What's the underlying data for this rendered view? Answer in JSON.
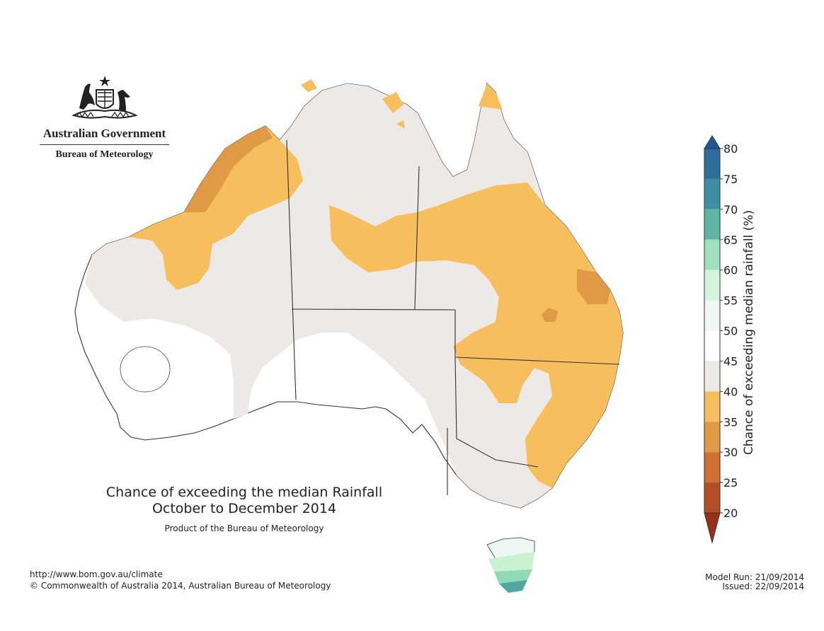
{
  "header": {
    "org_name": "Australian Government",
    "org_sub": "Bureau of Meteorology"
  },
  "map": {
    "title_line1": "Chance of exceeding the median Rainfall",
    "title_line2": "October to December 2014",
    "subtitle": "Product of the Bureau of Meteorology",
    "region": "Australia",
    "colors": {
      "20-25": "#a83a1a",
      "25-30": "#c85a26",
      "30-35": "#d98a3a",
      "35-40": "#f6be5c",
      "40-45": "#ece9e6",
      "45-55": "#ffffff",
      "55-60": "#e6f4ec",
      "60-65": "#c9f2d1",
      "65-70": "#8fd8b8",
      "70-75": "#4fa6a2",
      "75-80": "#2e7a99",
      "80+": "#1b5893"
    }
  },
  "legend": {
    "title": "Chance of exceeding median rainfall (%)",
    "ticks": [
      "80",
      "75",
      "70",
      "65",
      "60",
      "55",
      "50",
      "45",
      "40",
      "35",
      "30",
      "25",
      "20"
    ],
    "bands": [
      {
        "from": 75,
        "to": 80,
        "color": "#2e6e9a"
      },
      {
        "from": 70,
        "to": 75,
        "color": "#3f8fa3"
      },
      {
        "from": 65,
        "to": 70,
        "color": "#5fb5a6"
      },
      {
        "from": 60,
        "to": 65,
        "color": "#9ee0bf"
      },
      {
        "from": 55,
        "to": 60,
        "color": "#d3f3da"
      },
      {
        "from": 50,
        "to": 55,
        "color": "#eef7f1"
      },
      {
        "from": 45,
        "to": 50,
        "color": "#ffffff"
      },
      {
        "from": 40,
        "to": 45,
        "color": "#ece9e6"
      },
      {
        "from": 35,
        "to": 40,
        "color": "#f6be5c"
      },
      {
        "from": 30,
        "to": 35,
        "color": "#e09a45"
      },
      {
        "from": 25,
        "to": 30,
        "color": "#cf6f33"
      },
      {
        "from": 20,
        "to": 25,
        "color": "#b44e24"
      }
    ],
    "top_arrow_color": "#1b5a96",
    "bottom_arrow_color": "#9a3018"
  },
  "footer": {
    "url": "http://www.bom.gov.au/climate",
    "copyright": "© Commonwealth of Australia 2014, Australian Bureau of Meteorology",
    "model_run": "Model Run: 21/09/2014",
    "issued": "Issued: 22/09/2014"
  }
}
